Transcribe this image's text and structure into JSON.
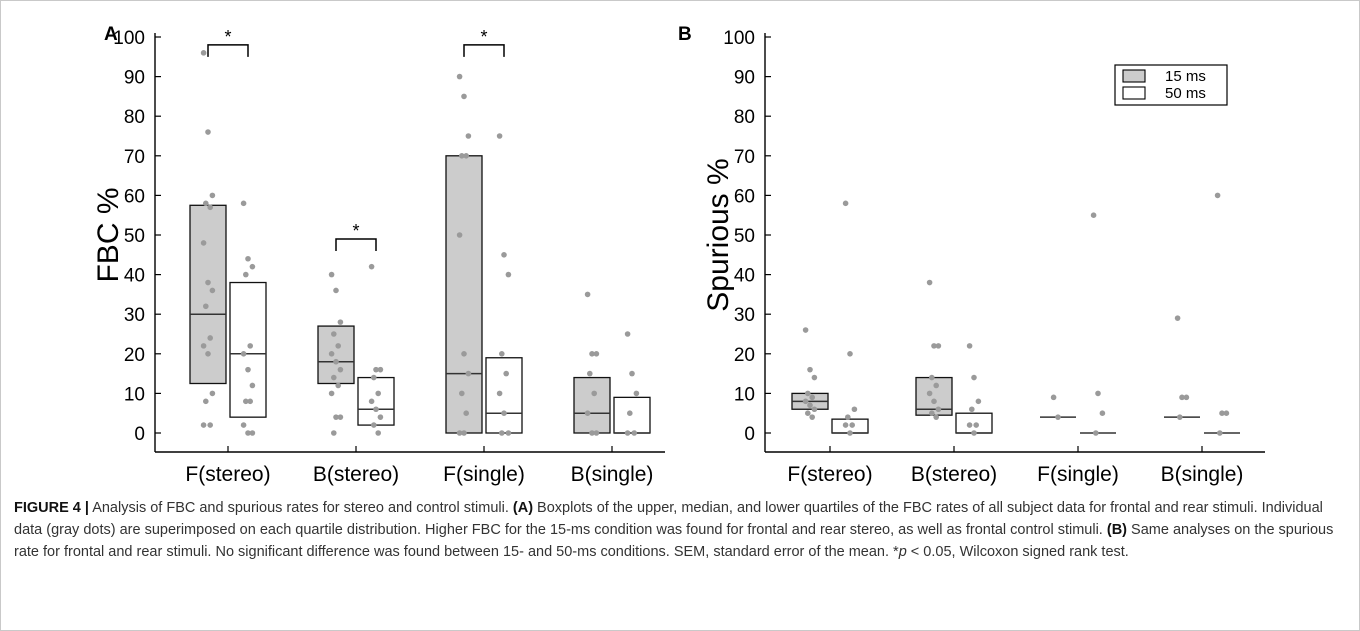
{
  "chart_data": [
    {
      "panel": "A",
      "type": "box",
      "ylabel": "FBC %",
      "ylim": [
        0,
        100
      ],
      "yticks": [
        "0",
        "10",
        "20",
        "30",
        "40",
        "50",
        "60",
        "70",
        "80",
        "90",
        "100"
      ],
      "categories": [
        "F(stereo)",
        "B(stereo)",
        "F(single)",
        "B(single)"
      ],
      "series": [
        {
          "name": "15 ms",
          "color": "#cccccc",
          "boxes": [
            {
              "q1": 12.5,
              "median": 30,
              "q3": 57.5,
              "points": [
                96,
                76,
                60,
                58,
                57,
                48,
                38,
                36,
                32,
                24,
                22,
                20,
                10,
                8,
                2,
                2
              ]
            },
            {
              "q1": 12.5,
              "median": 18,
              "q3": 27,
              "points": [
                40,
                36,
                28,
                25,
                22,
                20,
                18,
                16,
                14,
                12,
                10,
                4,
                4,
                0
              ]
            },
            {
              "q1": 0,
              "median": 15,
              "q3": 70,
              "points": [
                90,
                85,
                75,
                70,
                70,
                50,
                20,
                15,
                10,
                5,
                0,
                0
              ]
            },
            {
              "q1": 0,
              "median": 5,
              "q3": 14,
              "points": [
                35,
                20,
                20,
                15,
                10,
                5,
                0,
                0
              ]
            }
          ]
        },
        {
          "name": "50 ms",
          "color": "#ffffff",
          "boxes": [
            {
              "q1": 4,
              "median": 20,
              "q3": 38,
              "points": [
                58,
                44,
                42,
                40,
                22,
                20,
                16,
                12,
                8,
                8,
                2,
                0,
                0
              ]
            },
            {
              "q1": 2,
              "median": 6,
              "q3": 14,
              "points": [
                42,
                16,
                16,
                14,
                10,
                8,
                6,
                4,
                2,
                0
              ]
            },
            {
              "q1": 0,
              "median": 5,
              "q3": 19,
              "points": [
                75,
                45,
                40,
                20,
                15,
                10,
                5,
                0,
                0
              ]
            },
            {
              "q1": 0,
              "median": 0,
              "q3": 9,
              "points": [
                25,
                15,
                10,
                5,
                0,
                0
              ]
            }
          ]
        }
      ],
      "significance": [
        {
          "category": "F(stereo)",
          "label": "*",
          "y": 98
        },
        {
          "category": "B(stereo)",
          "label": "*",
          "y": 49
        },
        {
          "category": "F(single)",
          "label": "*",
          "y": 98
        }
      ]
    },
    {
      "panel": "B",
      "type": "box",
      "ylabel": "Spurious %",
      "ylim": [
        0,
        100
      ],
      "yticks": [
        "0",
        "10",
        "20",
        "30",
        "40",
        "50",
        "60",
        "70",
        "80",
        "90",
        "100"
      ],
      "categories": [
        "F(stereo)",
        "B(stereo)",
        "F(single)",
        "B(single)"
      ],
      "legend": [
        "15 ms",
        "50 ms"
      ],
      "legend_position": "top-right",
      "series": [
        {
          "name": "15 ms",
          "color": "#cccccc",
          "boxes": [
            {
              "q1": 6,
              "median": 8,
              "q3": 10,
              "points": [
                26,
                16,
                14,
                10,
                9,
                8,
                7,
                6,
                5,
                4
              ]
            },
            {
              "q1": 4.5,
              "median": 6,
              "q3": 14,
              "points": [
                38,
                22,
                22,
                14,
                12,
                10,
                8,
                6,
                5,
                4
              ]
            },
            {
              "q1": 4,
              "median": 4,
              "q3": 4,
              "points": [
                9,
                4
              ]
            },
            {
              "q1": 4,
              "median": 4,
              "q3": 4,
              "points": [
                29,
                9,
                9,
                4
              ]
            }
          ]
        },
        {
          "name": "50 ms",
          "color": "#ffffff",
          "boxes": [
            {
              "q1": 0,
              "median": 0,
              "q3": 3.5,
              "points": [
                58,
                20,
                6,
                4,
                2,
                2,
                0
              ]
            },
            {
              "q1": 0,
              "median": 0,
              "q3": 5,
              "points": [
                22,
                14,
                8,
                6,
                2,
                2,
                0
              ]
            },
            {
              "q1": 0,
              "median": 0,
              "q3": 0,
              "points": [
                55,
                10,
                5,
                0
              ]
            },
            {
              "q1": 0,
              "median": 0,
              "q3": 0,
              "points": [
                60,
                5,
                5,
                0
              ]
            }
          ]
        }
      ]
    }
  ],
  "caption": {
    "figure_label": "FIGURE 4 |",
    "intro": " Analysis of FBC and spurious rates for stereo and control stimuli. ",
    "a_label": "(A)",
    "a_text": " Boxplots of the upper, median, and lower quartiles of the FBC rates of all subject data for frontal and rear stimuli. Individual data (gray dots) are superimposed on each quartile distribution. Higher FBC for the 15-ms condition was found for frontal and rear stereo, as well as frontal control stimuli. ",
    "b_label": "(B)",
    "b_text": " Same analyses on the spurious rate for frontal and rear stimuli. No significant difference was found between 15- and 50-ms conditions. SEM, standard error of the mean. *",
    "p_symbol": "p",
    "p_rest": " < 0.05, Wilcoxon signed rank test."
  },
  "colors": {
    "box_15ms": "#cccccc",
    "box_50ms": "#ffffff",
    "dot": "#9a9a9a",
    "axis": "#000000"
  }
}
